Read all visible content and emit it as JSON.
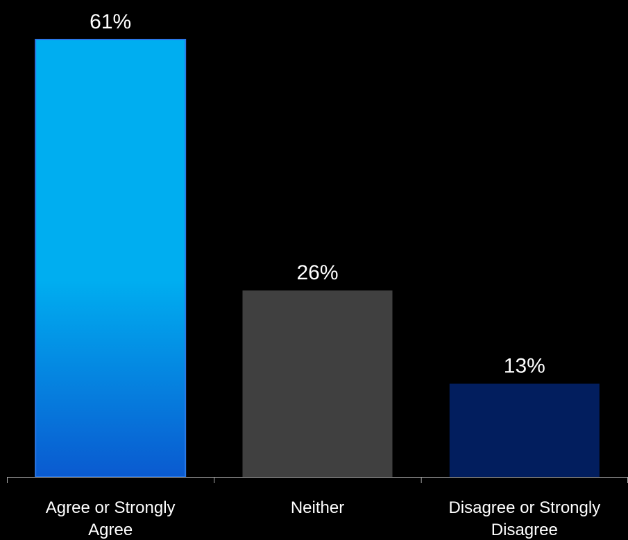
{
  "chart_data": {
    "type": "bar",
    "categories": [
      [
        "Agree or Strongly",
        "Agree"
      ],
      [
        "Neither"
      ],
      [
        "Disagree or Strongly",
        "Disagree"
      ]
    ],
    "values": [
      61,
      26,
      13
    ],
    "data_labels": [
      "61%",
      "26%",
      "13%"
    ],
    "colors": [
      "#00aef0",
      "#404040",
      "#021e5e"
    ],
    "gradient_bottom": "#0a5ad0",
    "ylim": [
      0,
      61
    ],
    "grid": false,
    "legend": "none",
    "axis_color": "#a6a6a6",
    "title": "",
    "xlabel": "",
    "ylabel": ""
  }
}
